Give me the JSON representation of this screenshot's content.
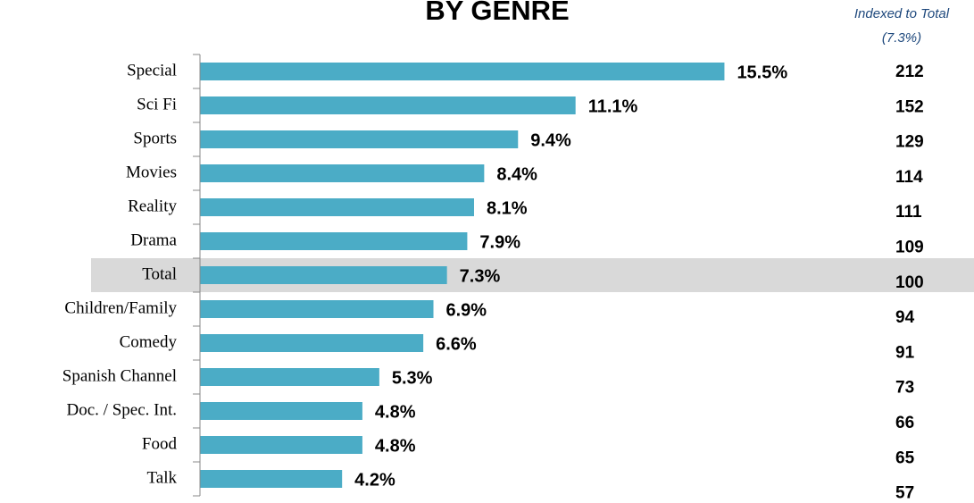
{
  "chart_data": {
    "type": "bar",
    "title": "BY GENRE",
    "categories": [
      "Special",
      "Sci Fi",
      "Sports",
      "Movies",
      "Reality",
      "Drama",
      "Total",
      "Children/Family",
      "Comedy",
      "Spanish Channel",
      "Doc. / Spec. Int.",
      "Food",
      "Talk"
    ],
    "values": [
      15.5,
      11.1,
      9.4,
      8.4,
      8.1,
      7.9,
      7.3,
      6.9,
      6.6,
      5.3,
      4.8,
      4.8,
      4.2
    ],
    "value_labels": [
      "15.5%",
      "11.1%",
      "9.4%",
      "8.4%",
      "8.1%",
      "7.9%",
      "7.3%",
      "6.9%",
      "6.6%",
      "5.3%",
      "4.8%",
      "4.8%",
      "4.2%"
    ],
    "color": "#4bacc6",
    "xlim": [
      0,
      20
    ],
    "highlight": "Total",
    "index_header": [
      "Indexed to Total",
      "(7.3%)"
    ],
    "index_values": [
      212,
      152,
      129,
      114,
      111,
      109,
      100,
      94,
      91,
      73,
      66,
      65,
      57
    ]
  }
}
